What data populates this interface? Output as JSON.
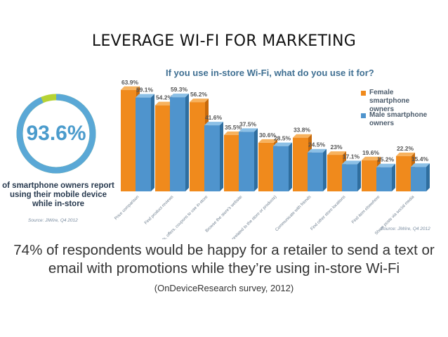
{
  "slide": {
    "title": "LEVERAGE WI-FI FOR MARKETING",
    "gauge": {
      "value": "93.6%",
      "percent": 93.6,
      "caption": [
        "of smartphone owners report",
        "using their mobile device",
        "while in-store"
      ],
      "source": "Source: JiWire, Q4 2012",
      "ring_color": "#5aa8d6",
      "remainder_color": "#b6d334"
    },
    "body": {
      "main": "74% of respondents would be happy for a retailer to send a text or email with promotions while they’re using in-store Wi-Fi",
      "citation": "(OnDeviceResearch survey, 2012)"
    }
  },
  "chart_data": {
    "type": "bar",
    "title": "If you use in-store Wi-Fi, what do you use it for?",
    "categories": [
      "Price comparison",
      "Find product reviews",
      "Deals, offers, coupons to use in-store",
      "Browse the store's website",
      "Browse the web (unrelated to the store or products)",
      "Communicate with friends",
      "Find other store locations",
      "Find item elsewhere",
      "Share posts via social media"
    ],
    "series": [
      {
        "name": "Female smartphone owners",
        "color": "#f08a1c",
        "values": [
          63.9,
          54.2,
          56.2,
          35.5,
          30.6,
          33.8,
          23,
          19.6,
          22.2
        ],
        "labels": [
          "63.9%",
          "54.2%",
          "56.2%",
          "35.5%",
          "30.6%",
          "33.8%",
          "23%",
          "19.6%",
          "22.2%"
        ]
      },
      {
        "name": "Male smartphone owners",
        "color": "#4f94cd",
        "values": [
          59.1,
          59.3,
          41.6,
          37.5,
          28.5,
          24.5,
          17.1,
          15.2,
          15.4
        ],
        "labels": [
          "59.1%",
          "59.3%",
          "41.6%",
          "37.5%",
          "28.5%",
          "24.5%",
          "17.1%",
          "15.2%",
          "15.4%"
        ]
      }
    ],
    "ylim": [
      0,
      70
    ],
    "grid": false,
    "legend": "top-right",
    "source": "Source: JiWire, Q4 2012"
  }
}
